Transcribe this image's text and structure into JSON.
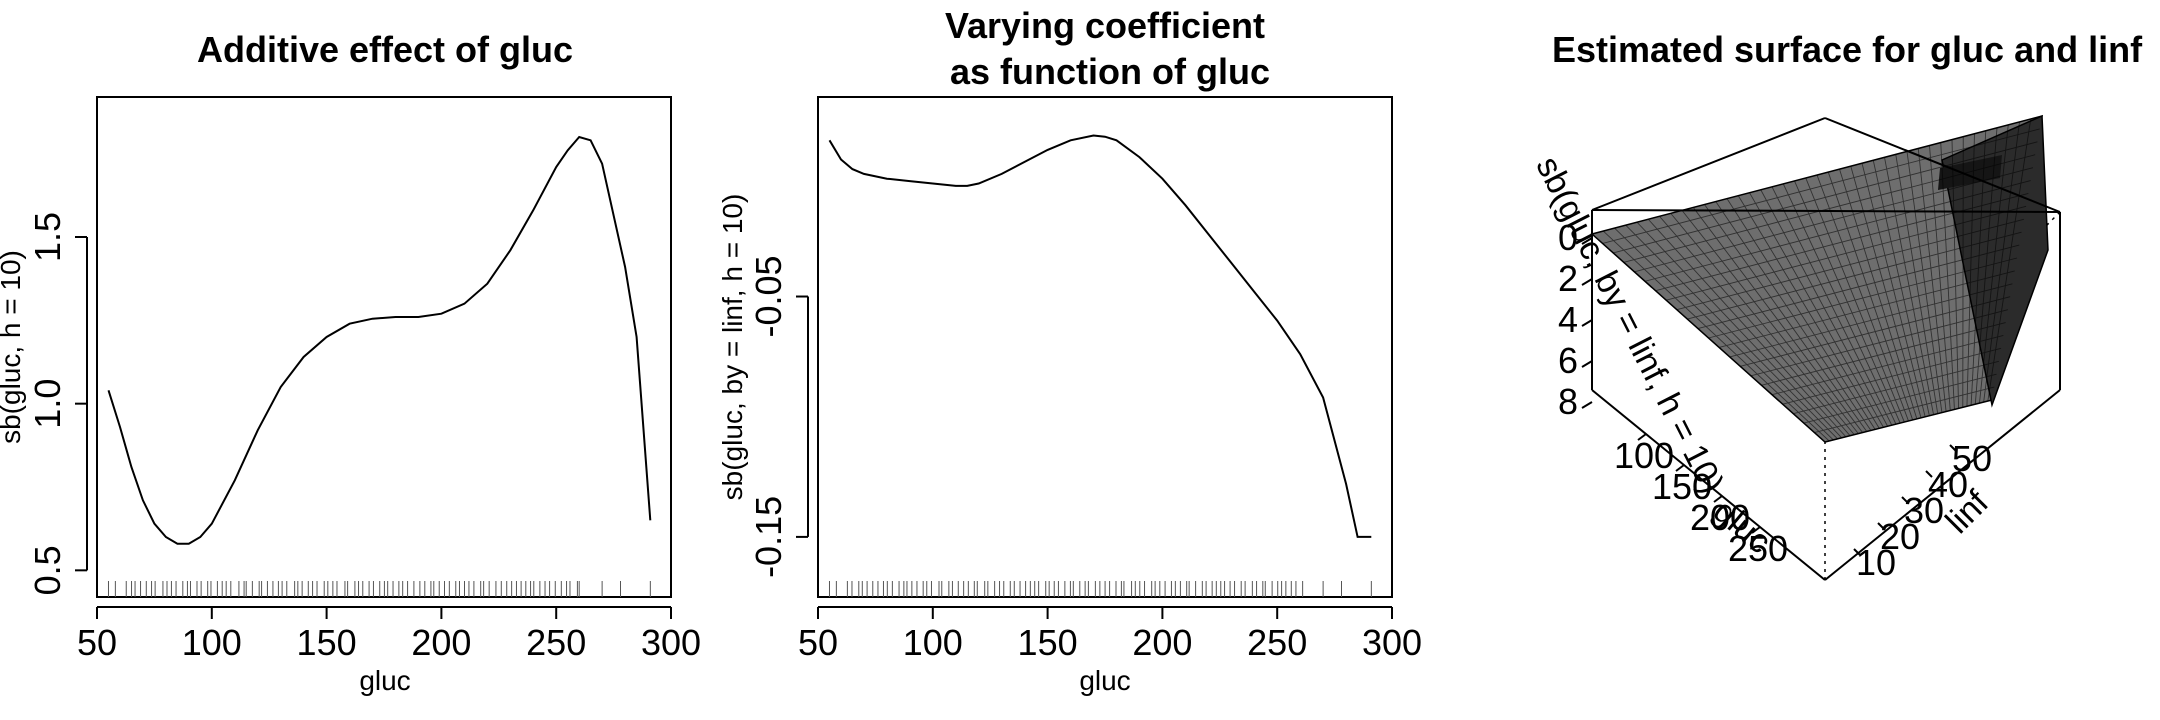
{
  "chart_data": [
    {
      "type": "line",
      "title": "Additive effect of gluc",
      "xlabel": "gluc",
      "ylabel": "sb(gluc, h = 10)",
      "xlim": [
        50,
        300
      ],
      "ylim": [
        0.42,
        1.92
      ],
      "xticks": [
        50,
        100,
        150,
        200,
        250,
        300
      ],
      "yticks": [
        0.5,
        1.0,
        1.5
      ],
      "xtick_labels": [
        "50",
        "100",
        "150",
        "200",
        "250",
        "300"
      ],
      "ytick_labels": [
        "0.5",
        "1.0",
        "1.5"
      ],
      "rug": true,
      "x": [
        55,
        60,
        65,
        70,
        75,
        80,
        85,
        90,
        95,
        100,
        110,
        120,
        130,
        140,
        150,
        160,
        170,
        180,
        190,
        200,
        210,
        220,
        230,
        240,
        250,
        255,
        260,
        265,
        270,
        280,
        285,
        291
      ],
      "y": [
        1.04,
        0.93,
        0.81,
        0.71,
        0.64,
        0.6,
        0.58,
        0.58,
        0.6,
        0.64,
        0.77,
        0.92,
        1.05,
        1.14,
        1.2,
        1.24,
        1.255,
        1.26,
        1.26,
        1.27,
        1.3,
        1.36,
        1.46,
        1.58,
        1.71,
        1.76,
        1.8,
        1.79,
        1.72,
        1.41,
        1.2,
        0.65
      ]
    },
    {
      "type": "line",
      "title": "Varying coefficient\nas function of gluc",
      "xlabel": "gluc",
      "ylabel": "sb(gluc, by = linf, h = 10)",
      "xlim": [
        50,
        300
      ],
      "ylim": [
        -0.175,
        0.033
      ],
      "xticks": [
        50,
        100,
        150,
        200,
        250,
        300
      ],
      "yticks": [
        -0.15,
        -0.05
      ],
      "xtick_labels": [
        "50",
        "100",
        "150",
        "200",
        "250",
        "300"
      ],
      "ytick_labels": [
        "-0.15",
        "-0.05"
      ],
      "rug": true,
      "x": [
        55,
        60,
        65,
        70,
        80,
        90,
        100,
        110,
        115,
        120,
        130,
        140,
        150,
        160,
        170,
        175,
        180,
        190,
        200,
        210,
        220,
        230,
        240,
        250,
        260,
        270,
        280,
        285,
        291
      ],
      "y": [
        0.015,
        0.007,
        0.003,
        0.001,
        -0.001,
        -0.002,
        -0.003,
        -0.004,
        -0.004,
        -0.003,
        0.001,
        0.006,
        0.011,
        0.015,
        0.017,
        0.0165,
        0.015,
        0.008,
        -0.001,
        -0.012,
        -0.024,
        -0.036,
        -0.048,
        -0.06,
        -0.074,
        -0.092,
        -0.128,
        -0.15,
        -0.15
      ]
    },
    {
      "type": "surface",
      "title": "Estimated surface for gluc and linf",
      "xlabel": "gluc",
      "ylabel": "linf",
      "zlabel": "sb(gluc, by = linf, h = 10)",
      "x_tick_labels": [
        "100",
        "150",
        "200",
        "250"
      ],
      "y_tick_labels": [
        "10",
        "20",
        "30",
        "40",
        "50"
      ],
      "z_tick_labels": [
        "0",
        "2",
        "4",
        "6",
        "8"
      ],
      "z_values": [
        0,
        -2,
        -4,
        -6,
        -8
      ]
    }
  ]
}
